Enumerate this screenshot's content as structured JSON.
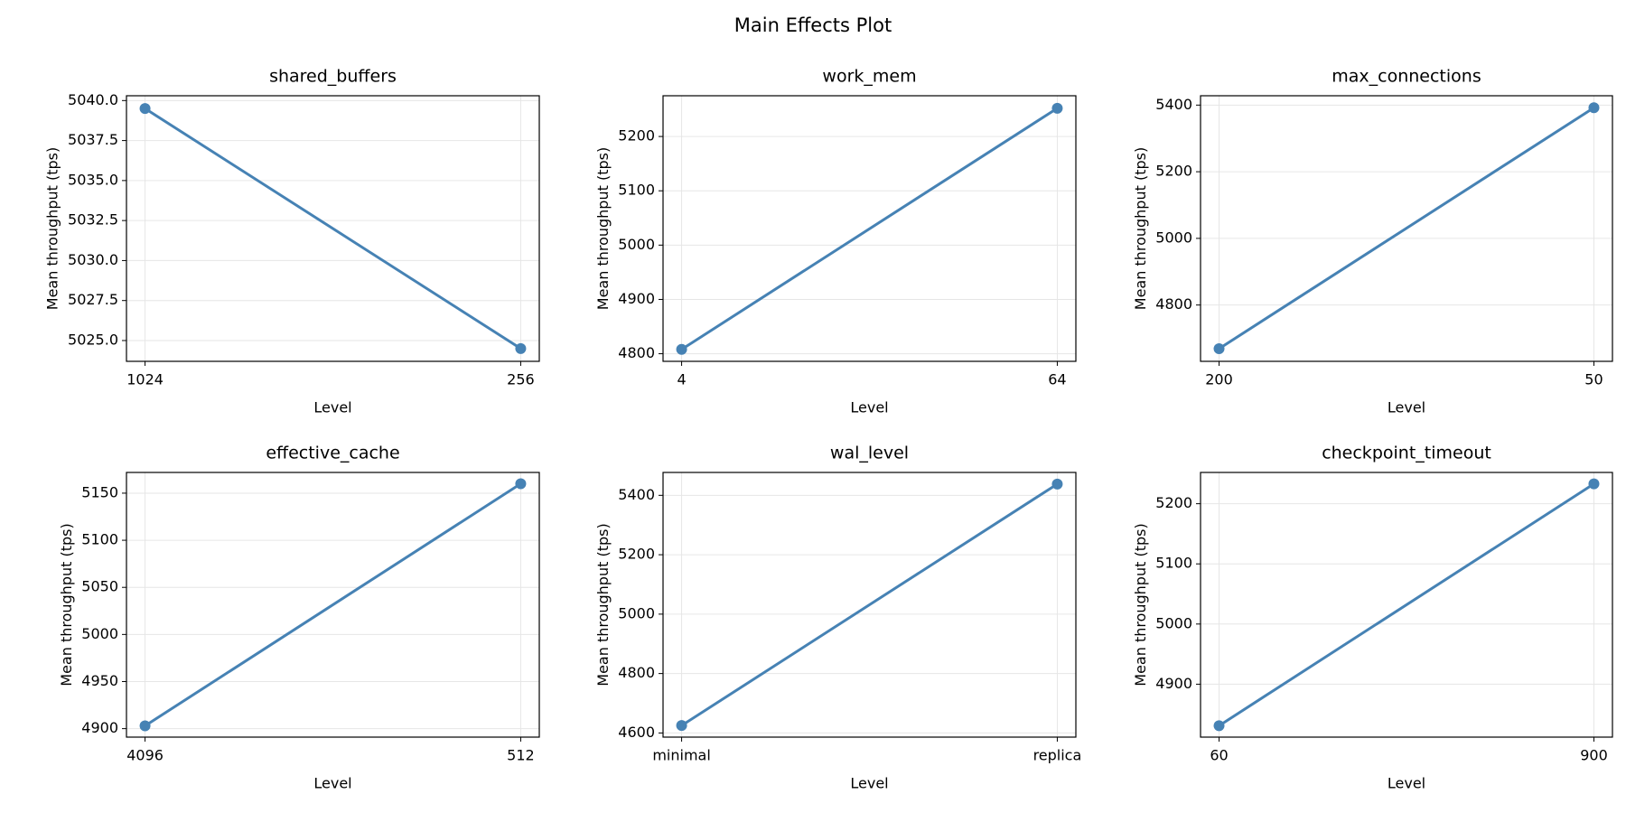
{
  "title": "Main Effects Plot",
  "chart_data": [
    {
      "type": "line",
      "title": "shared_buffers",
      "x_label": "Level",
      "y_label": "Mean throughput (tps)",
      "categories": [
        "1024",
        "256"
      ],
      "values": [
        5039.5,
        5024.5
      ],
      "color": "#4682b4",
      "ylim": [
        5023.7,
        5040.3
      ],
      "yticks": [
        {
          "value": 5025,
          "label": "5025.0"
        },
        {
          "value": 5027.5,
          "label": "5027.5"
        },
        {
          "value": 5030,
          "label": "5030.0"
        },
        {
          "value": 5032.5,
          "label": "5032.5"
        },
        {
          "value": 5035,
          "label": "5035.0"
        },
        {
          "value": 5037.5,
          "label": "5037.5"
        },
        {
          "value": 5040,
          "label": "5040.0"
        }
      ],
      "grid": true
    },
    {
      "type": "line",
      "title": "work_mem",
      "x_label": "Level",
      "y_label": "Mean throughput (tps)",
      "categories": [
        "4",
        "64"
      ],
      "values": [
        4808,
        5252
      ],
      "color": "#4682b4",
      "ylim": [
        4786,
        5275
      ],
      "yticks": [
        4800,
        4900,
        5000,
        5100,
        5200
      ],
      "grid": true
    },
    {
      "type": "line",
      "title": "max_connections",
      "x_label": "Level",
      "y_label": "Mean throughput (tps)",
      "categories": [
        "200",
        "50"
      ],
      "values": [
        4669,
        5392
      ],
      "color": "#4682b4",
      "ylim": [
        4631,
        5428
      ],
      "yticks": [
        4800,
        5000,
        5200,
        5400
      ],
      "grid": true
    },
    {
      "type": "line",
      "title": "effective_cache",
      "x_label": "Level",
      "y_label": "Mean throughput (tps)",
      "categories": [
        "4096",
        "512"
      ],
      "values": [
        4903,
        5160
      ],
      "color": "#4682b4",
      "ylim": [
        4891,
        5172
      ],
      "yticks": [
        4900,
        4950,
        5000,
        5050,
        5100,
        5150
      ],
      "grid": true
    },
    {
      "type": "line",
      "title": "wal_level",
      "x_label": "Level",
      "y_label": "Mean throughput (tps)",
      "categories": [
        "minimal",
        "replica"
      ],
      "values": [
        4625,
        5438
      ],
      "color": "#4682b4",
      "ylim": [
        4586,
        5477
      ],
      "yticks": [
        4600,
        4800,
        5000,
        5200,
        5400
      ],
      "grid": true
    },
    {
      "type": "line",
      "title": "checkpoint_timeout",
      "x_label": "Level",
      "y_label": "Mean throughput (tps)",
      "categories": [
        "60",
        "900"
      ],
      "values": [
        4831,
        5233
      ],
      "color": "#4682b4",
      "ylim": [
        4812,
        5252
      ],
      "yticks": [
        4900,
        5000,
        5100,
        5200
      ],
      "grid": true
    }
  ]
}
